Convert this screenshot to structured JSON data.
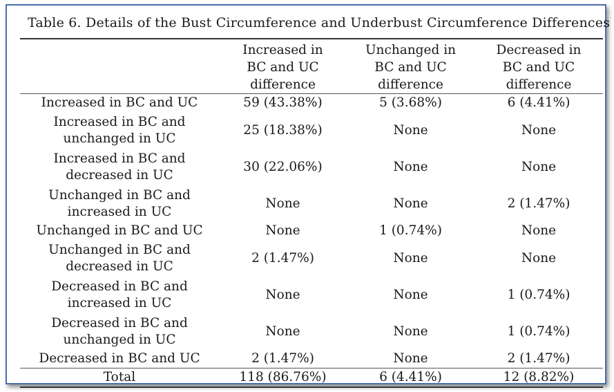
{
  "title": "Table 6. Details of the Bust Circumference and Underbust Circumference Differences",
  "header": {
    "col0": "",
    "col1": [
      "Increased in",
      "BC and UC",
      "difference"
    ],
    "col2": [
      "Unchanged in",
      "BC and UC",
      "difference"
    ],
    "col3": [
      "Decreased in",
      "BC and UC",
      "difference"
    ]
  },
  "rows": [
    {
      "label": [
        "Increased in BC and UC"
      ],
      "c1": "59 (43.38%)",
      "c2": "5 (3.68%)",
      "c3": "6 (4.41%)"
    },
    {
      "label": [
        "Increased in BC and",
        "unchanged in UC"
      ],
      "c1": "25 (18.38%)",
      "c2": "None",
      "c3": "None"
    },
    {
      "label": [
        "Increased in BC and",
        "decreased in UC"
      ],
      "c1": "30 (22.06%)",
      "c2": "None",
      "c3": "None"
    },
    {
      "label": [
        "Unchanged in BC and",
        "increased in UC"
      ],
      "c1": "None",
      "c2": "None",
      "c3": "2 (1.47%)"
    },
    {
      "label": [
        "Unchanged in BC and UC"
      ],
      "c1": "None",
      "c2": "1 (0.74%)",
      "c3": "None"
    },
    {
      "label": [
        "Unchanged in BC and",
        "decreased in UC"
      ],
      "c1": "2 (1.47%)",
      "c2": "None",
      "c3": "None"
    },
    {
      "label": [
        "Decreased in BC and",
        "increased in UC"
      ],
      "c1": "None",
      "c2": "None",
      "c3": "1 (0.74%)"
    },
    {
      "label": [
        "Decreased in BC and",
        "unchanged in UC"
      ],
      "c1": "None",
      "c2": "None",
      "c3": "1 (0.74%)"
    },
    {
      "label": [
        "Decreased in BC and UC"
      ],
      "c1": "2 (1.47%)",
      "c2": "None",
      "c3": "2 (1.47%)"
    }
  ],
  "total": {
    "label": "Total",
    "c1": "118 (86.76%)",
    "c2": "6 (4.41%)",
    "c3": "12 (8.82%)"
  },
  "colors": {
    "frame_border": "#4a6fa8",
    "rule": "#333333"
  }
}
